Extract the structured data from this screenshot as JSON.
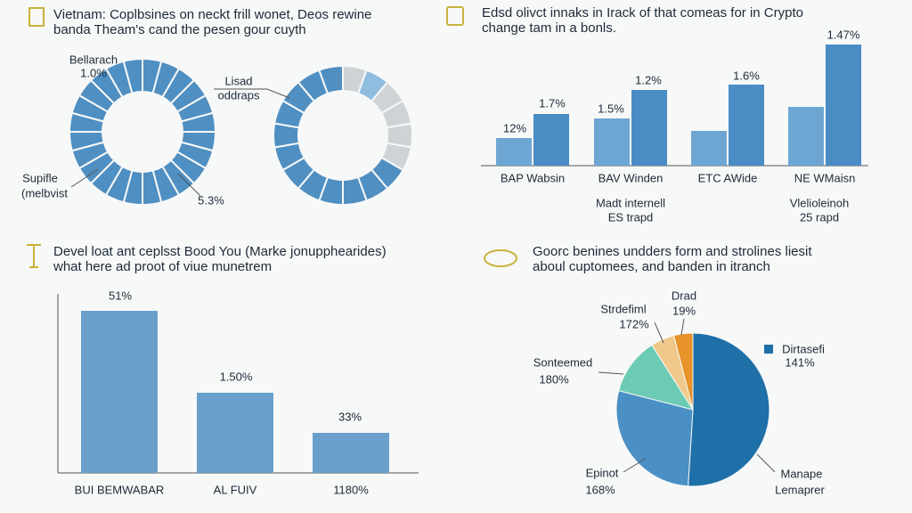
{
  "chart_data": [
    {
      "type": "donut",
      "title": [
        "Vietnam: Coplbsines on neckt frill wonet, Deos rewine",
        "banda Theam's cand the pesen gour cuyth"
      ],
      "annotations": [
        "Bellarach",
        "1.0%",
        "Lisad",
        "oddraps",
        "Supifle",
        "(melbvist",
        "5.3%"
      ]
    },
    {
      "type": "grouped-bar",
      "title": [
        "Edsd olivct innaks in Irack of that comeas for in Crypto",
        "change tam in a bonls."
      ],
      "categories": [
        "BAP Wabsin",
        "BAV Winden",
        "ETC AWide",
        "NE WMaisn"
      ],
      "series": [
        {
          "color": "#6ea6d3",
          "values": [
            31,
            53,
            39,
            66
          ]
        },
        {
          "color": "#4a8cc4",
          "values": [
            58,
            85,
            91,
            136
          ]
        }
      ],
      "ylim": [
        0,
        150
      ],
      "annotations": [
        "12%",
        "1.7%",
        "1.5%",
        "1.2%",
        "1.6%",
        "1.47%"
      ],
      "notes": [
        "Madt internell",
        "ES trapd",
        "Vlelioleinoh",
        "25 rapd"
      ]
    },
    {
      "type": "bar",
      "title": [
        "Devel loat ant ceplsst Bood You (Marke jonupphearides)",
        "what here ad proot of viue munetrem"
      ],
      "categories": [
        "BUI BEMWABAR",
        "AL FUIV",
        "1180%"
      ],
      "values": [
        182,
        90,
        45
      ],
      "color": "#6a9fcc",
      "ylim": [
        0,
        200
      ],
      "annotations": [
        "51%",
        "1.50%",
        "33%"
      ]
    },
    {
      "type": "pie",
      "title": [
        "Goorc benines undders form and strolines liesit",
        "aboul cuptomees, and banden in itranch"
      ],
      "values": [
        51,
        28,
        12,
        5,
        4
      ],
      "colors": [
        "#1f6fa8",
        "#4a90c4",
        "#6ccbb5",
        "#f0c98a",
        "#e8922a"
      ],
      "annotations": [
        "Drad",
        "19%",
        "Strdefiml",
        "172%",
        "Sonteemed",
        "180%",
        "Dirtasefi",
        "141%",
        "Epinot",
        "168%",
        "Manape",
        "Lemaprer"
      ]
    }
  ]
}
